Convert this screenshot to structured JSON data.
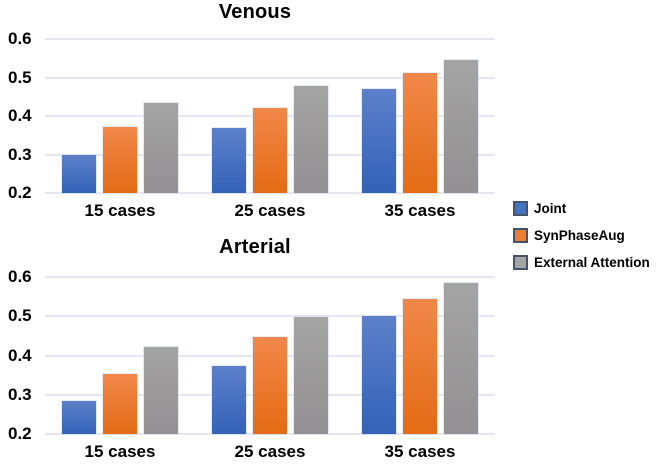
{
  "figure": {
    "background": "#ffffff"
  },
  "legend": {
    "position": "right",
    "items": [
      {
        "label": "Joint"
      },
      {
        "label": "SynPhaseAug"
      },
      {
        "label": "External Attention"
      }
    ]
  },
  "chart_data": [
    {
      "type": "bar",
      "title": "Venous",
      "categories": [
        "15 cases",
        "25 cases",
        "35 cases"
      ],
      "series": [
        {
          "name": "Joint",
          "values": [
            0.298,
            0.368,
            0.47
          ]
        },
        {
          "name": "SynPhaseAug",
          "values": [
            0.371,
            0.422,
            0.512
          ]
        },
        {
          "name": "External Attention",
          "values": [
            0.435,
            0.478,
            0.545
          ]
        }
      ],
      "xlabel": "",
      "ylabel": "",
      "ylim": [
        0.2,
        0.6
      ],
      "yticks": [
        0.2,
        0.3,
        0.4,
        0.5,
        0.6
      ],
      "ytick_labels": [
        "0.2",
        "0.3",
        "0.4",
        "0.5",
        "0.6"
      ],
      "grid": true,
      "legend_position": "right"
    },
    {
      "type": "bar",
      "title": "Arterial",
      "categories": [
        "15 cases",
        "25 cases",
        "35 cases"
      ],
      "series": [
        {
          "name": "Joint",
          "values": [
            0.285,
            0.374,
            0.5
          ]
        },
        {
          "name": "SynPhaseAug",
          "values": [
            0.353,
            0.446,
            0.544
          ]
        },
        {
          "name": "External Attention",
          "values": [
            0.422,
            0.499,
            0.584
          ]
        }
      ],
      "xlabel": "",
      "ylabel": "",
      "ylim": [
        0.2,
        0.6
      ],
      "yticks": [
        0.2,
        0.3,
        0.4,
        0.5,
        0.6
      ],
      "ytick_labels": [
        "0.2",
        "0.3",
        "0.4",
        "0.5",
        "0.6"
      ],
      "grid": true,
      "legend_position": "right"
    }
  ],
  "styles": {
    "text_color": "#000000",
    "gridline_color": "#e4e7f1",
    "legend_border_color": "#44546A",
    "series": [
      {
        "name": "Joint",
        "legend_fill": "#4472C4",
        "bar_top": "#5C80CA",
        "bar_bottom": "#3362B8"
      },
      {
        "name": "SynPhaseAug",
        "legend_fill": "#ED7D31",
        "bar_top": "#F1874A",
        "bar_bottom": "#E36C15"
      },
      {
        "name": "External Attention",
        "legend_fill": "#A5A5A5",
        "bar_top": "#A5A4A4",
        "bar_bottom": "#929092"
      }
    ]
  }
}
